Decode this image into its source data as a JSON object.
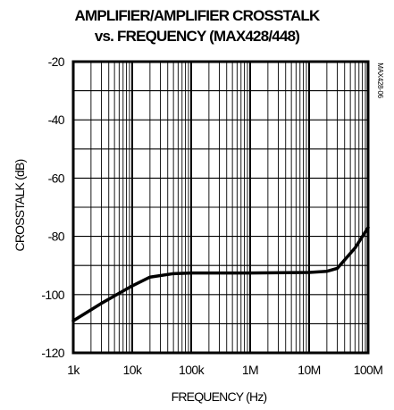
{
  "chart_data": {
    "type": "line",
    "title": "AMPLIFIER/AMPLIFIER CROSSTALK",
    "subtitle": "vs. FREQUENCY (MAX428/448)",
    "xlabel": "FREQUENCY (Hz)",
    "ylabel": "CROSSTALK (dB)",
    "watermark": "MAX428-06",
    "x_scale": "log",
    "xlim": [
      1000,
      100000000
    ],
    "ylim": [
      -120,
      -20
    ],
    "grid": true,
    "x_ticks": [
      {
        "value": 1000,
        "label": "1k"
      },
      {
        "value": 10000,
        "label": "10k"
      },
      {
        "value": 100000,
        "label": "100k"
      },
      {
        "value": 1000000,
        "label": "1M"
      },
      {
        "value": 10000000,
        "label": "10M"
      },
      {
        "value": 100000000,
        "label": "100M"
      }
    ],
    "y_ticks": [
      {
        "value": -20,
        "label": "-20"
      },
      {
        "value": -40,
        "label": "-40"
      },
      {
        "value": -60,
        "label": "-60"
      },
      {
        "value": -80,
        "label": "-80"
      },
      {
        "value": -100,
        "label": "-100"
      },
      {
        "value": -120,
        "label": "-120"
      }
    ],
    "series": [
      {
        "color": "#000000",
        "x": [
          1000,
          3000,
          10000,
          20000,
          50000,
          100000,
          1000000,
          10000000,
          20000000,
          30000000,
          60000000,
          100000000
        ],
        "y": [
          -109,
          -103,
          -97,
          -94,
          -92.8,
          -92.6,
          -92.6,
          -92.4,
          -92,
          -91,
          -84,
          -77
        ]
      }
    ]
  }
}
